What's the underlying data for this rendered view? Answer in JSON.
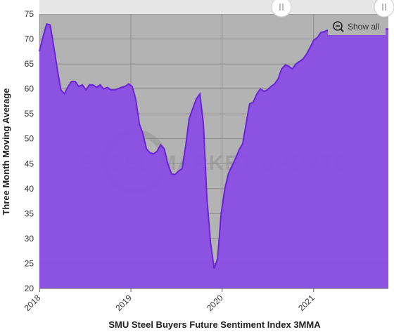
{
  "controls": {
    "show_all_label": "Show all"
  },
  "watermark": {
    "text": "STEEL MARKET UPDATE"
  },
  "colors": {
    "fill": "#8a4fe3",
    "line": "#6a23d8",
    "plot_background": "#b3b3b3",
    "grid": "#8c8c8c"
  },
  "chart_data": {
    "type": "area",
    "title": "",
    "xlabel": "SMU Steel Buyers Future Sentiment Index 3MMA",
    "ylabel": "Three Month Moving Average",
    "ylim": [
      20,
      75
    ],
    "yticks": [
      20,
      25,
      30,
      35,
      40,
      45,
      50,
      55,
      60,
      65,
      70,
      75
    ],
    "xlim": [
      "2017-12-31",
      "2021-10-27"
    ],
    "xtick_labels": [
      "2018",
      "2019",
      "2020",
      "2021"
    ],
    "xtick_dates": [
      "2018-01-01",
      "2019-01-01",
      "2020-01-01",
      "2021-01-01"
    ],
    "grid": true,
    "legend": "none",
    "navigator": "present",
    "series": [
      {
        "x": [
          "2017-12-31",
          "2018-01-15",
          "2018-01-29",
          "2018-02-12",
          "2018-02-27",
          "2018-03-13",
          "2018-03-27",
          "2018-04-10",
          "2018-04-25",
          "2018-05-09",
          "2018-05-23",
          "2018-06-06",
          "2018-06-21",
          "2018-07-05",
          "2018-07-19",
          "2018-08-02",
          "2018-08-17",
          "2018-08-31",
          "2018-09-14",
          "2018-09-29",
          "2018-10-13",
          "2018-10-27",
          "2018-11-10",
          "2018-11-24",
          "2018-12-09",
          "2018-12-23",
          "2019-01-06",
          "2019-01-20",
          "2019-02-04",
          "2019-02-18",
          "2019-03-04",
          "2019-03-18",
          "2019-04-02",
          "2019-04-16",
          "2019-04-30",
          "2019-05-14",
          "2019-05-29",
          "2019-06-12",
          "2019-06-26",
          "2019-07-10",
          "2019-07-25",
          "2019-08-08",
          "2019-08-22",
          "2019-09-05",
          "2019-09-20",
          "2019-10-04",
          "2019-10-18",
          "2019-11-01",
          "2019-11-16",
          "2019-11-30",
          "2019-12-14",
          "2019-12-28",
          "2020-01-12",
          "2020-01-26",
          "2020-02-09",
          "2020-02-23",
          "2020-03-09",
          "2020-03-23",
          "2020-04-06",
          "2020-04-20",
          "2020-05-04",
          "2020-05-19",
          "2020-06-02",
          "2020-06-16",
          "2020-06-30",
          "2020-07-15",
          "2020-07-29",
          "2020-08-12",
          "2020-08-26",
          "2020-09-10",
          "2020-09-24",
          "2020-10-08",
          "2020-10-22",
          "2020-11-06",
          "2020-11-20",
          "2020-12-04",
          "2020-12-18",
          "2021-01-02",
          "2021-01-16",
          "2021-01-30",
          "2021-02-13",
          "2021-02-28",
          "2021-03-14",
          "2021-03-28",
          "2021-04-11",
          "2021-04-26",
          "2021-05-10",
          "2021-05-24",
          "2021-06-07",
          "2021-06-22",
          "2021-07-06",
          "2021-07-20",
          "2021-08-03",
          "2021-08-18",
          "2021-09-01",
          "2021-09-15",
          "2021-09-29",
          "2021-10-14",
          "2021-10-27"
        ],
        "y": [
          67.5,
          70.5,
          73,
          72.8,
          68.3,
          63.8,
          59.8,
          59,
          60.5,
          61.5,
          61.5,
          60.5,
          60.8,
          59.8,
          60.8,
          60.8,
          60.3,
          60.8,
          60,
          60.3,
          59.8,
          59.8,
          60,
          60.3,
          60.5,
          61,
          60.5,
          58,
          53,
          51,
          48,
          47.2,
          47,
          47.5,
          48.8,
          48,
          45,
          43,
          42.8,
          43.5,
          44,
          48.5,
          54,
          56,
          58,
          59,
          53,
          38,
          29,
          24,
          26,
          35,
          40,
          43,
          44.5,
          46,
          47.8,
          49,
          53,
          57,
          57.3,
          59,
          60,
          59.5,
          59.8,
          60.5,
          61,
          62,
          64,
          64.8,
          64.5,
          64,
          65,
          65.5,
          66,
          67,
          68.3,
          69.8,
          70.3,
          71.3,
          71.5,
          71.8,
          72,
          72,
          72,
          72,
          72,
          72,
          72,
          72,
          72,
          72,
          72,
          72,
          72,
          72,
          72,
          72,
          72
        ]
      }
    ]
  }
}
